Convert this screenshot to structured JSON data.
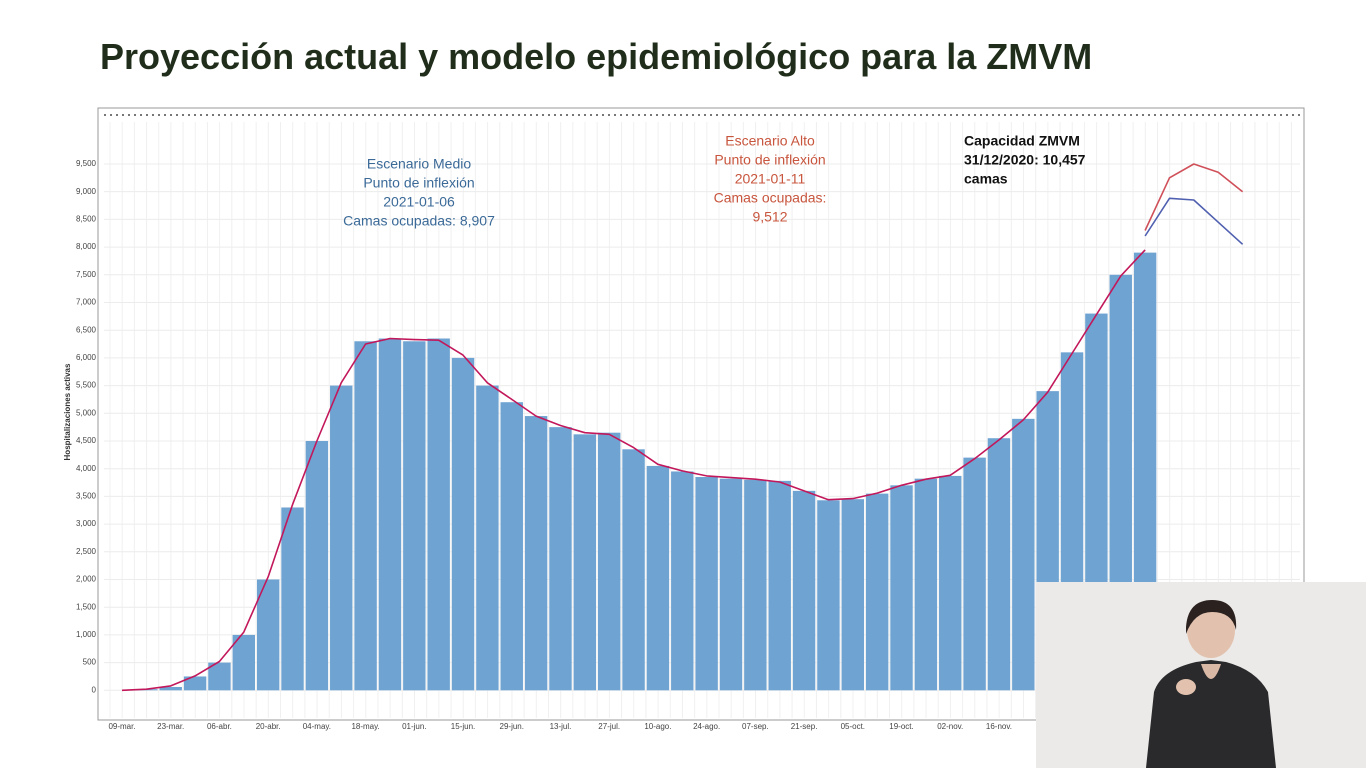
{
  "header": {
    "title": "Proyección actual y modelo epidemiológico para la ZMVM"
  },
  "chart_data": {
    "type": "bar",
    "ylabel": "Hospitalizaciones activas",
    "categories": [
      "09-mar.",
      null,
      "23-mar.",
      null,
      "06-abr.",
      null,
      "20-abr.",
      null,
      "04-may.",
      null,
      "18-may.",
      null,
      "01-jun.",
      null,
      "15-jun.",
      null,
      "29-jun.",
      null,
      "13-jul.",
      null,
      "27-jul.",
      null,
      "10-ago.",
      null,
      "24-ago.",
      null,
      "07-sep.",
      null,
      "21-sep.",
      null,
      "05-oct.",
      null,
      "19-oct.",
      null,
      "02-nov.",
      null,
      "16-nov.",
      null,
      null,
      null,
      null,
      null,
      null,
      null,
      null,
      null,
      null
    ],
    "series": [
      {
        "color": "#6fa3d2",
        "values": [
          0,
          20,
          60,
          250,
          500,
          1000,
          2000,
          3300,
          4500,
          5500,
          6300,
          6350,
          6300,
          6350,
          6000,
          5500,
          5200,
          4950,
          4750,
          4620,
          4650,
          4350,
          4050,
          3950,
          3850,
          3820,
          3800,
          3780,
          3600,
          3430,
          3450,
          3550,
          3700,
          3820,
          3870,
          4200,
          4550,
          4900,
          5400,
          6100,
          6800,
          7500,
          7900,
          null,
          null,
          null,
          null
        ]
      },
      {
        "type": "line",
        "color": "#c2185b",
        "values": [
          0,
          20,
          80,
          260,
          520,
          1050,
          2050,
          3350,
          4500,
          5550,
          6250,
          6350,
          6330,
          6320,
          6050,
          5550,
          5250,
          4950,
          4780,
          4650,
          4620,
          4380,
          4080,
          3960,
          3870,
          3840,
          3810,
          3760,
          3600,
          3440,
          3460,
          3560,
          3700,
          3810,
          3880,
          4180,
          4520,
          4880,
          5380,
          6080,
          6780,
          7480,
          7950,
          null,
          null,
          null,
          null
        ]
      },
      {
        "type": "line",
        "color": "#5060b0",
        "values": [
          null,
          null,
          null,
          null,
          null,
          null,
          null,
          null,
          null,
          null,
          null,
          null,
          null,
          null,
          null,
          null,
          null,
          null,
          null,
          null,
          null,
          null,
          null,
          null,
          null,
          null,
          null,
          null,
          null,
          null,
          null,
          null,
          null,
          null,
          null,
          null,
          null,
          null,
          null,
          null,
          null,
          null,
          8200,
          8880,
          8850,
          8450,
          8050
        ]
      },
      {
        "type": "line",
        "color": "#d0505a",
        "values": [
          null,
          null,
          null,
          null,
          null,
          null,
          null,
          null,
          null,
          null,
          null,
          null,
          null,
          null,
          null,
          null,
          null,
          null,
          null,
          null,
          null,
          null,
          null,
          null,
          null,
          null,
          null,
          null,
          null,
          null,
          null,
          null,
          null,
          null,
          null,
          null,
          null,
          null,
          null,
          null,
          null,
          null,
          8300,
          9250,
          9500,
          9350,
          9000
        ]
      }
    ],
    "ylim": [
      -500,
      10330
    ],
    "yticks": [
      0,
      500,
      {
        "value": 1000,
        "label": "1,000"
      },
      {
        "value": 1500,
        "label": "1,500"
      },
      {
        "value": 2000,
        "label": "2,000"
      },
      {
        "value": 2500,
        "label": "2,500"
      },
      {
        "value": 3000,
        "label": "3,000"
      },
      {
        "value": 3500,
        "label": "3,500"
      },
      {
        "value": 4000,
        "label": "4,000"
      },
      {
        "value": 4500,
        "label": "4,500"
      },
      {
        "value": 5000,
        "label": "5,000"
      },
      {
        "value": 5500,
        "label": "5,500"
      },
      {
        "value": 6000,
        "label": "6,000"
      },
      {
        "value": 6500,
        "label": "6,500"
      },
      {
        "value": 7000,
        "label": "7,000"
      },
      {
        "value": 7500,
        "label": "7,500"
      },
      {
        "value": 8000,
        "label": "8,000"
      },
      {
        "value": 8500,
        "label": "8,500"
      },
      {
        "value": 9000,
        "label": "9,000"
      },
      {
        "value": 9500,
        "label": "9,500"
      }
    ],
    "grid": true,
    "annotations": [
      {
        "color": "#3b6a98",
        "bold": false,
        "align": "middle",
        "lines": [
          "Escenario Medio",
          "Punto de inflexión",
          "2021-01-06",
          "Camas ocupadas: 8,907"
        ]
      },
      {
        "color": "#c8553d",
        "bold": false,
        "align": "middle",
        "lines": [
          "Escenario Alto",
          "Punto de inflexión",
          "2021-01-11",
          "Camas ocupadas:",
          "9,512"
        ]
      },
      {
        "color": "#111111",
        "bold": true,
        "align": "start",
        "lines": [
          "Capacidad ZMVM",
          "31/12/2020: 10,457",
          "camas"
        ]
      }
    ]
  }
}
